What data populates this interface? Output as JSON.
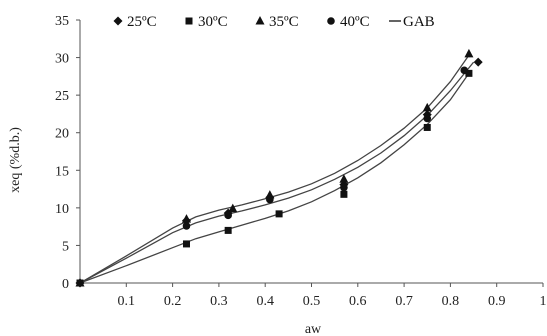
{
  "chart_data": {
    "type": "scatter",
    "xlabel": "aw",
    "ylabel": "xeq (%d.b.)",
    "xlim": [
      0,
      1
    ],
    "ylim": [
      0,
      35
    ],
    "x_ticks": [
      "0.1",
      "0.2",
      "0.3",
      "0.4",
      "0.5",
      "0.6",
      "0.7",
      "0.8",
      "0.9",
      "1"
    ],
    "y_ticks": [
      "0",
      "5",
      "10",
      "15",
      "20",
      "25",
      "30",
      "35"
    ],
    "grid": false,
    "legend_position": "top",
    "series": [
      {
        "name": "25ºC",
        "marker": "diamond",
        "x": [
          0,
          0.23,
          0.32,
          0.41,
          0.57,
          0.75,
          0.86
        ],
        "y": [
          0,
          8.3,
          9.3,
          11.4,
          13.1,
          22.4,
          29.4
        ]
      },
      {
        "name": "30ºC",
        "marker": "square",
        "x": [
          0,
          0.23,
          0.32,
          0.43,
          0.57,
          0.75,
          0.84
        ],
        "y": [
          0,
          5.2,
          7.0,
          9.2,
          11.8,
          20.7,
          27.9
        ]
      },
      {
        "name": "35ºC",
        "marker": "triangle",
        "x": [
          0,
          0.23,
          0.33,
          0.41,
          0.57,
          0.75,
          0.84
        ],
        "y": [
          0,
          8.5,
          9.9,
          11.7,
          13.8,
          23.3,
          30.5
        ]
      },
      {
        "name": "40ºC",
        "marker": "circle",
        "x": [
          0,
          0.23,
          0.32,
          0.41,
          0.57,
          0.75,
          0.83
        ],
        "y": [
          0,
          7.6,
          9.0,
          11.1,
          12.7,
          21.9,
          28.3
        ]
      }
    ],
    "gab": {
      "name": "GAB",
      "curves": [
        {
          "x": [
            0,
            0.1,
            0.2,
            0.25,
            0.3,
            0.35,
            0.4,
            0.45,
            0.5,
            0.55,
            0.6,
            0.65,
            0.7,
            0.75,
            0.8,
            0.84
          ],
          "y": [
            0,
            3.6,
            7.3,
            8.8,
            9.7,
            10.4,
            11.2,
            12.1,
            13.2,
            14.6,
            16.3,
            18.3,
            20.6,
            23.3,
            26.8,
            30.3
          ]
        },
        {
          "x": [
            0,
            0.1,
            0.2,
            0.25,
            0.3,
            0.35,
            0.4,
            0.45,
            0.5,
            0.55,
            0.6,
            0.65,
            0.7,
            0.75,
            0.8,
            0.85
          ],
          "y": [
            0,
            3.3,
            6.7,
            8.0,
            8.9,
            9.6,
            10.4,
            11.3,
            12.4,
            13.8,
            15.4,
            17.3,
            19.6,
            22.3,
            25.6,
            29.4
          ]
        },
        {
          "x": [
            0,
            0.1,
            0.2,
            0.25,
            0.3,
            0.35,
            0.4,
            0.45,
            0.5,
            0.55,
            0.6,
            0.65,
            0.7,
            0.75,
            0.8,
            0.84
          ],
          "y": [
            0,
            2.3,
            4.7,
            5.9,
            6.8,
            7.7,
            8.6,
            9.6,
            10.8,
            12.3,
            14.0,
            16.0,
            18.4,
            21.1,
            24.4,
            27.9
          ]
        }
      ]
    }
  }
}
